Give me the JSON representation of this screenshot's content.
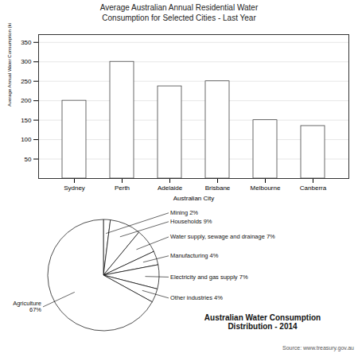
{
  "chart_data": [
    {
      "type": "bar",
      "title": "Average Australian Annual Residential Water\nConsumption for Selected Cities - Last Year",
      "categories": [
        "Sydney",
        "Perth",
        "Adelaide",
        "Brisbane",
        "Melbourne",
        "Canberra"
      ],
      "values": [
        200,
        300,
        237,
        250,
        150,
        135
      ],
      "color": "#ffffff",
      "xlabel": "Australian City",
      "ylabel": "Average Annual Water Consumption (kilolitre per property)",
      "ylim": [
        0,
        370
      ],
      "yticks": [
        50,
        100,
        150,
        200,
        250,
        300,
        350
      ],
      "grid": true
    },
    {
      "type": "pie",
      "title": "Australian Water Consumption\nDistribution - 2014",
      "values": [
        2,
        9,
        7,
        4,
        7,
        4,
        67
      ],
      "value_labels": [
        "Mining 2%",
        "Households 9%",
        "Water supply, sewage and drainage 7%",
        "Manufacturing 4%",
        "Electricity and gas supply 7%",
        "Other industries 4%",
        "Agriculture\n67%"
      ],
      "colors": [
        "#ffffff",
        "#ffffff",
        "#ffffff",
        "#ffffff",
        "#ffffff",
        "#ffffff",
        "#ffffff"
      ],
      "data_labels": true,
      "annotations": [
        "Source: www.treasury.gov.au"
      ]
    }
  ]
}
